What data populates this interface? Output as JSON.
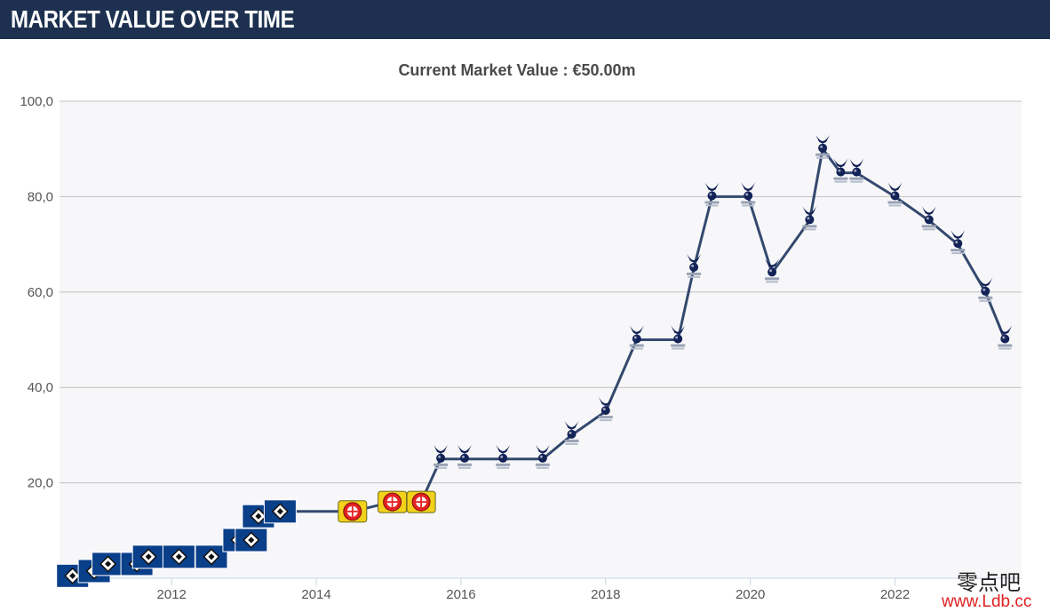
{
  "header": {
    "title": "MARKET VALUE OVER TIME"
  },
  "chart_data": {
    "type": "line",
    "title": "Current Market Value : €50.00m",
    "xlabel": "",
    "ylabel": "",
    "xlim": [
      2010.45,
      2023.75
    ],
    "ylim": [
      0,
      100
    ],
    "y_ticks": [
      {
        "value": 100,
        "label": "100,0"
      },
      {
        "value": 80,
        "label": "80,0"
      },
      {
        "value": 60,
        "label": "60,0"
      },
      {
        "value": 40,
        "label": "40,0"
      },
      {
        "value": 20,
        "label": "20,0"
      }
    ],
    "x_ticks": [
      {
        "value": 2012,
        "label": "2012"
      },
      {
        "value": 2014,
        "label": "2014"
      },
      {
        "value": 2016,
        "label": "2016"
      },
      {
        "value": 2018,
        "label": "2018"
      },
      {
        "value": 2020,
        "label": "2020"
      },
      {
        "value": 2022,
        "label": "2022"
      }
    ],
    "grid": true,
    "series": [
      {
        "color": "#34496e",
        "points": [
          {
            "x": 2010.63,
            "y": 0.5,
            "club": "hsv"
          },
          {
            "x": 2010.93,
            "y": 1.5,
            "club": "hsv"
          },
          {
            "x": 2011.12,
            "y": 3,
            "club": "hsv"
          },
          {
            "x": 2011.52,
            "y": 3,
            "club": "hsv"
          },
          {
            "x": 2011.68,
            "y": 4.5,
            "club": "hsv"
          },
          {
            "x": 2012.1,
            "y": 4.5,
            "club": "hsv"
          },
          {
            "x": 2012.55,
            "y": 4.5,
            "club": "hsv"
          },
          {
            "x": 2012.93,
            "y": 8,
            "club": "hsv"
          },
          {
            "x": 2013.1,
            "y": 8,
            "club": "hsv"
          },
          {
            "x": 2013.2,
            "y": 13,
            "club": "hsv"
          },
          {
            "x": 2013.5,
            "y": 14,
            "club": "hsv"
          },
          {
            "x": 2014.5,
            "y": 14,
            "club": "leverkusen"
          },
          {
            "x": 2015.05,
            "y": 16,
            "club": "leverkusen"
          },
          {
            "x": 2015.45,
            "y": 16,
            "club": "leverkusen"
          },
          {
            "x": 2015.72,
            "y": 25,
            "club": "tottenham"
          },
          {
            "x": 2016.05,
            "y": 25,
            "club": "tottenham"
          },
          {
            "x": 2016.58,
            "y": 25,
            "club": "tottenham"
          },
          {
            "x": 2017.13,
            "y": 25,
            "club": "tottenham"
          },
          {
            "x": 2017.53,
            "y": 30,
            "club": "tottenham"
          },
          {
            "x": 2018.0,
            "y": 35,
            "club": "tottenham"
          },
          {
            "x": 2018.43,
            "y": 50,
            "club": "tottenham"
          },
          {
            "x": 2019.0,
            "y": 50,
            "club": "tottenham"
          },
          {
            "x": 2019.22,
            "y": 65,
            "club": "tottenham"
          },
          {
            "x": 2019.47,
            "y": 80,
            "club": "tottenham"
          },
          {
            "x": 2019.97,
            "y": 80,
            "club": "tottenham"
          },
          {
            "x": 2020.3,
            "y": 64,
            "club": "tottenham"
          },
          {
            "x": 2020.82,
            "y": 75,
            "club": "tottenham"
          },
          {
            "x": 2021.0,
            "y": 90,
            "club": "tottenham"
          },
          {
            "x": 2021.25,
            "y": 85,
            "club": "tottenham"
          },
          {
            "x": 2021.47,
            "y": 85,
            "club": "tottenham"
          },
          {
            "x": 2022.0,
            "y": 80,
            "club": "tottenham"
          },
          {
            "x": 2022.47,
            "y": 75,
            "club": "tottenham"
          },
          {
            "x": 2022.87,
            "y": 70,
            "club": "tottenham"
          },
          {
            "x": 2023.25,
            "y": 60,
            "club": "tottenham"
          },
          {
            "x": 2023.52,
            "y": 50,
            "club": "tottenham"
          }
        ]
      }
    ]
  },
  "watermark": {
    "cn": "零点吧",
    "url": "www.Ldb.cc"
  },
  "colors": {
    "header_bg": "#1d3050",
    "plot_bg": "#f7f7f9",
    "grid": "#c0c0c0",
    "line": "#34496e",
    "hsv_blue": "#0a3f8a",
    "leverkusen_red": "#e32221",
    "leverkusen_yellow": "#f2d21b",
    "spurs_navy": "#132257"
  }
}
